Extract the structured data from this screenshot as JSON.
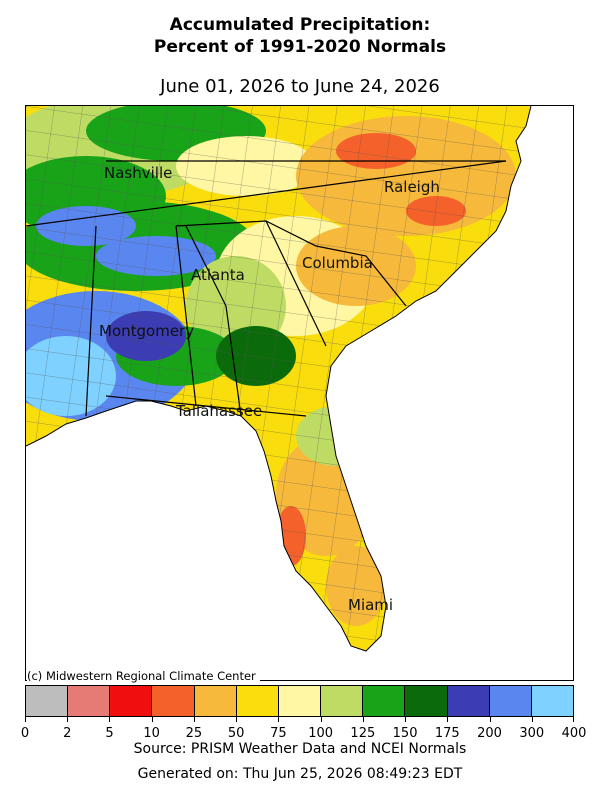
{
  "title_line1": "Accumulated Precipitation:",
  "title_line2": "Percent of 1991-2020 Normals",
  "subtitle": "June 01, 2026 to June 24, 2026",
  "copyright": "(c) Midwestern Regional Climate Center",
  "source": "Source: PRISM Weather Data and NCEI Normals",
  "generated": "Generated on: Thu Jun 25, 2026 08:49:23 EDT",
  "cities": [
    {
      "name": "Nashville"
    },
    {
      "name": "Raleigh"
    },
    {
      "name": "Atlanta"
    },
    {
      "name": "Columbia"
    },
    {
      "name": "Montgomery"
    },
    {
      "name": "Tallahassee"
    },
    {
      "name": "Miami"
    }
  ],
  "legend": {
    "colors": [
      "#bdbdbd",
      "#e67b76",
      "#ef0f0f",
      "#f5612a",
      "#f6b93b",
      "#f9dd0c",
      "#fff7a3",
      "#bedc63",
      "#18a318",
      "#0b6b0b",
      "#3c3cb4",
      "#5a86f0",
      "#7fd1ff"
    ],
    "ticks": [
      "0",
      "2",
      "5",
      "10",
      "25",
      "50",
      "75",
      "100",
      "125",
      "150",
      "175",
      "200",
      "300",
      "400"
    ]
  },
  "colors": {
    "ocean": "#ffffff",
    "state_border": "#000000",
    "county_border": "#555555"
  }
}
